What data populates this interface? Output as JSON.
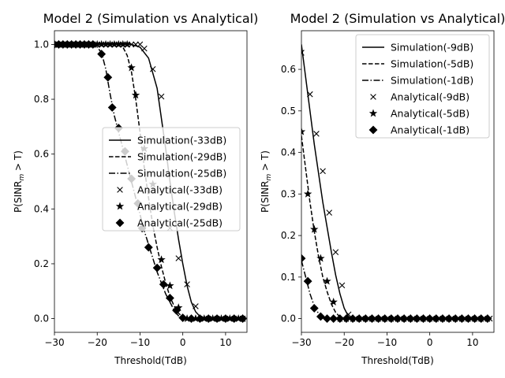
{
  "figure": {
    "background": "#ffffff",
    "line_color": "#000000",
    "legend_edge": "#cccccc"
  },
  "chart_data": [
    {
      "type": "line",
      "title": "Model 2 (Simulation vs Analytical)",
      "xlabel": "Threshold(TdB)",
      "ylabel_main": "P(SINR",
      "ylabel_sub": "m",
      "ylabel_tail": " > T)",
      "xlim": [
        -30,
        15
      ],
      "ylim": [
        -0.05,
        1.05
      ],
      "xticks": [
        -30,
        -20,
        -10,
        0,
        10
      ],
      "xtick_labels": [
        "−30",
        "−20",
        "−10",
        "0",
        "10"
      ],
      "yticks": [
        0.0,
        0.2,
        0.4,
        0.6,
        0.8,
        1.0
      ],
      "ytick_labels": [
        "0.0",
        "0.2",
        "0.4",
        "0.6",
        "0.8",
        "1.0"
      ],
      "legend_position": "center-right",
      "series": [
        {
          "name": "Simulation(-33dB)",
          "kind": "simulation",
          "style": "solid",
          "x": [
            -30,
            -20,
            -14,
            -12,
            -10,
            -8,
            -6,
            -4,
            -3,
            -2,
            -1,
            0,
            1,
            2,
            3,
            4,
            5,
            6,
            10,
            14
          ],
          "y": [
            1.0,
            1.0,
            1.0,
            1.0,
            0.99,
            0.95,
            0.84,
            0.62,
            0.5,
            0.39,
            0.29,
            0.2,
            0.12,
            0.06,
            0.025,
            0.008,
            0.001,
            0.0,
            0.0,
            0.0
          ]
        },
        {
          "name": "Simulation(-29dB)",
          "kind": "simulation",
          "style": "dashed",
          "x": [
            -30,
            -16,
            -14,
            -13,
            -12,
            -11,
            -10,
            -9,
            -8,
            -7,
            -6,
            -5,
            -4,
            -3,
            -2,
            -1,
            0,
            2,
            10,
            14
          ],
          "y": [
            1.0,
            1.0,
            0.99,
            0.96,
            0.9,
            0.8,
            0.68,
            0.55,
            0.44,
            0.34,
            0.26,
            0.19,
            0.13,
            0.08,
            0.045,
            0.02,
            0.005,
            0.0,
            0.0,
            0.0
          ]
        },
        {
          "name": "Simulation(-25dB)",
          "kind": "simulation",
          "style": "dashdot",
          "x": [
            -30,
            -22,
            -20,
            -19,
            -18,
            -17,
            -16,
            -15,
            -14,
            -13,
            -12,
            -11,
            -10,
            -9,
            -8,
            -7,
            -6,
            -5,
            -4,
            -3,
            -2,
            -1,
            0,
            2,
            10,
            14
          ],
          "y": [
            1.0,
            1.0,
            0.99,
            0.97,
            0.91,
            0.82,
            0.74,
            0.68,
            0.62,
            0.56,
            0.5,
            0.44,
            0.38,
            0.32,
            0.27,
            0.22,
            0.17,
            0.13,
            0.09,
            0.06,
            0.03,
            0.01,
            0.003,
            0.0,
            0.0,
            0.0
          ]
        },
        {
          "name": "Analytical(-33dB)",
          "kind": "analytical",
          "marker": "x",
          "x": [
            -30,
            -29,
            -28,
            -27,
            -26,
            -25,
            -24,
            -23,
            -22,
            -21,
            -20,
            -19,
            -18,
            -17,
            -16,
            -15,
            -14,
            -13,
            -12,
            -11,
            -10,
            -9,
            -7,
            -5,
            -3,
            -1,
            1,
            3,
            5,
            7,
            9,
            11,
            13,
            14
          ],
          "y": [
            1.0,
            1.0,
            1.0,
            1.0,
            1.0,
            1.0,
            1.0,
            1.0,
            1.0,
            1.0,
            1.0,
            1.0,
            1.0,
            1.0,
            1.0,
            1.0,
            1.0,
            1.0,
            1.0,
            1.0,
            1.0,
            0.985,
            0.91,
            0.81,
            0.33,
            0.22,
            0.125,
            0.045,
            0.0,
            0.0,
            0.0,
            0.0,
            0.0,
            0.0
          ]
        },
        {
          "name": "Analytical(-29dB)",
          "kind": "analytical",
          "marker": "star",
          "x": [
            -30,
            -29,
            -28,
            -27,
            -26,
            -25,
            -24,
            -23,
            -22,
            -21,
            -20,
            -19,
            -18,
            -17,
            -16,
            -15,
            -14,
            -13,
            -12,
            -11,
            -9,
            -7,
            -5,
            -3,
            -1,
            1,
            3,
            5,
            7,
            9,
            11,
            13,
            14
          ],
          "y": [
            1.0,
            1.0,
            1.0,
            1.0,
            1.0,
            1.0,
            1.0,
            1.0,
            1.0,
            1.0,
            1.0,
            1.0,
            1.0,
            1.0,
            1.0,
            1.0,
            1.0,
            1.0,
            0.915,
            0.815,
            0.62,
            0.49,
            0.215,
            0.12,
            0.04,
            0.0,
            0.0,
            0.0,
            0.0,
            0.0,
            0.0,
            0.0,
            0.0
          ]
        },
        {
          "name": "Analytical(-25dB)",
          "kind": "analytical",
          "marker": "diamond",
          "x": [
            -30,
            -29,
            -28,
            -27,
            -26,
            -25,
            -24,
            -23,
            -22,
            -21,
            -19,
            -17.5,
            -16.5,
            -15,
            -13.5,
            -12,
            -10.5,
            -9.5,
            -8,
            -6,
            -4.5,
            -3,
            -1.5,
            0,
            2,
            4,
            6,
            8,
            10,
            12,
            14
          ],
          "y": [
            1.0,
            1.0,
            1.0,
            1.0,
            1.0,
            1.0,
            1.0,
            1.0,
            1.0,
            1.0,
            0.965,
            0.88,
            0.77,
            0.695,
            0.61,
            0.51,
            0.42,
            0.33,
            0.26,
            0.185,
            0.125,
            0.075,
            0.03,
            0.003,
            0.0,
            0.0,
            0.0,
            0.0,
            0.0,
            0.0,
            0.0
          ]
        }
      ]
    },
    {
      "type": "line",
      "title": "Model 2 (Simulation vs Analytical)",
      "xlabel": "Threshold(TdB)",
      "ylabel_main": "P(SINR",
      "ylabel_sub": "m",
      "ylabel_tail": " > T)",
      "xlim": [
        -30,
        15
      ],
      "ylim": [
        -0.033,
        0.693
      ],
      "xticks": [
        -30,
        -20,
        -10,
        0,
        10
      ],
      "xtick_labels": [
        "−30",
        "−20",
        "−10",
        "0",
        "10"
      ],
      "yticks": [
        0.0,
        0.1,
        0.2,
        0.3,
        0.4,
        0.5,
        0.6
      ],
      "ytick_labels": [
        "0.0",
        "0.1",
        "0.2",
        "0.3",
        "0.4",
        "0.5",
        "0.6"
      ],
      "legend_position": "upper-right",
      "series": [
        {
          "name": "Simulation(-9dB)",
          "kind": "simulation",
          "style": "solid",
          "x": [
            -30,
            -29,
            -28,
            -27,
            -26,
            -25,
            -24,
            -23,
            -22,
            -21,
            -20,
            -19,
            -18,
            -14,
            -10,
            0,
            10,
            14
          ],
          "y": [
            0.66,
            0.58,
            0.5,
            0.42,
            0.35,
            0.28,
            0.22,
            0.16,
            0.105,
            0.06,
            0.025,
            0.005,
            0.0,
            0.0,
            0.0,
            0.0,
            0.0,
            0.0
          ]
        },
        {
          "name": "Simulation(-5dB)",
          "kind": "simulation",
          "style": "dashed",
          "x": [
            -30,
            -29,
            -28,
            -27,
            -26,
            -25,
            -24,
            -23,
            -22,
            -21,
            -20,
            -14,
            -10,
            0,
            10,
            14
          ],
          "y": [
            0.44,
            0.36,
            0.28,
            0.21,
            0.15,
            0.1,
            0.065,
            0.035,
            0.015,
            0.004,
            0.0,
            0.0,
            0.0,
            0.0,
            0.0,
            0.0
          ]
        },
        {
          "name": "Simulation(-1dB)",
          "kind": "simulation",
          "style": "dashdot",
          "x": [
            -30,
            -29,
            -28,
            -27,
            -26,
            -25,
            -24,
            -20,
            -10,
            0,
            10,
            14
          ],
          "y": [
            0.14,
            0.1,
            0.06,
            0.03,
            0.012,
            0.003,
            0.0,
            0.0,
            0.0,
            0.0,
            0.0,
            0.0
          ]
        },
        {
          "name": "Analytical(-9dB)",
          "kind": "analytical",
          "marker": "x",
          "x": [
            -30,
            -28,
            -26.5,
            -25,
            -23.5,
            -22,
            -20.5,
            -19,
            -17.5,
            -16,
            -14.5,
            -13,
            -11.5,
            -10,
            -8.5,
            -7,
            -5.5,
            -4,
            -2.5,
            -1,
            0.5,
            2,
            3.5,
            5,
            6.5,
            8,
            9.5,
            11,
            12.5,
            14
          ],
          "y": [
            0.64,
            0.54,
            0.445,
            0.355,
            0.255,
            0.16,
            0.08,
            0.01,
            0.0,
            0.0,
            0.0,
            0.0,
            0.0,
            0.0,
            0.0,
            0.0,
            0.0,
            0.0,
            0.0,
            0.0,
            0.0,
            0.0,
            0.0,
            0.0,
            0.0,
            0.0,
            0.0,
            0.0,
            0.0,
            0.0
          ]
        },
        {
          "name": "Analytical(-5dB)",
          "kind": "analytical",
          "marker": "star",
          "x": [
            -30,
            -28.5,
            -27,
            -25.5,
            -24,
            -22.5,
            -21,
            -19.5,
            -18,
            -16.5,
            -15,
            -13.5,
            -12,
            -10.5,
            -9,
            -7.5,
            -6,
            -4.5,
            -3,
            -1.5,
            0,
            1.5,
            3,
            4.5,
            6,
            7.5,
            9,
            10.5,
            12,
            13.5
          ],
          "y": [
            0.45,
            0.3,
            0.215,
            0.145,
            0.09,
            0.04,
            0.0,
            0.0,
            0.0,
            0.0,
            0.0,
            0.0,
            0.0,
            0.0,
            0.0,
            0.0,
            0.0,
            0.0,
            0.0,
            0.0,
            0.0,
            0.0,
            0.0,
            0.0,
            0.0,
            0.0,
            0.0,
            0.0,
            0.0,
            0.0
          ]
        },
        {
          "name": "Analytical(-1dB)",
          "kind": "analytical",
          "marker": "diamond",
          "x": [
            -30,
            -28.5,
            -27,
            -25.5,
            -24,
            -22.5,
            -21,
            -19.5,
            -18,
            -16.5,
            -15,
            -13.5,
            -12,
            -10.5,
            -9,
            -7.5,
            -6,
            -4.5,
            -3,
            -1.5,
            0,
            1.5,
            3,
            4.5,
            6,
            7.5,
            9,
            10.5,
            12,
            13.5
          ],
          "y": [
            0.145,
            0.09,
            0.025,
            0.005,
            0.0,
            0.0,
            0.0,
            0.0,
            0.0,
            0.0,
            0.0,
            0.0,
            0.0,
            0.0,
            0.0,
            0.0,
            0.0,
            0.0,
            0.0,
            0.0,
            0.0,
            0.0,
            0.0,
            0.0,
            0.0,
            0.0,
            0.0,
            0.0,
            0.0,
            0.0
          ]
        }
      ]
    }
  ]
}
